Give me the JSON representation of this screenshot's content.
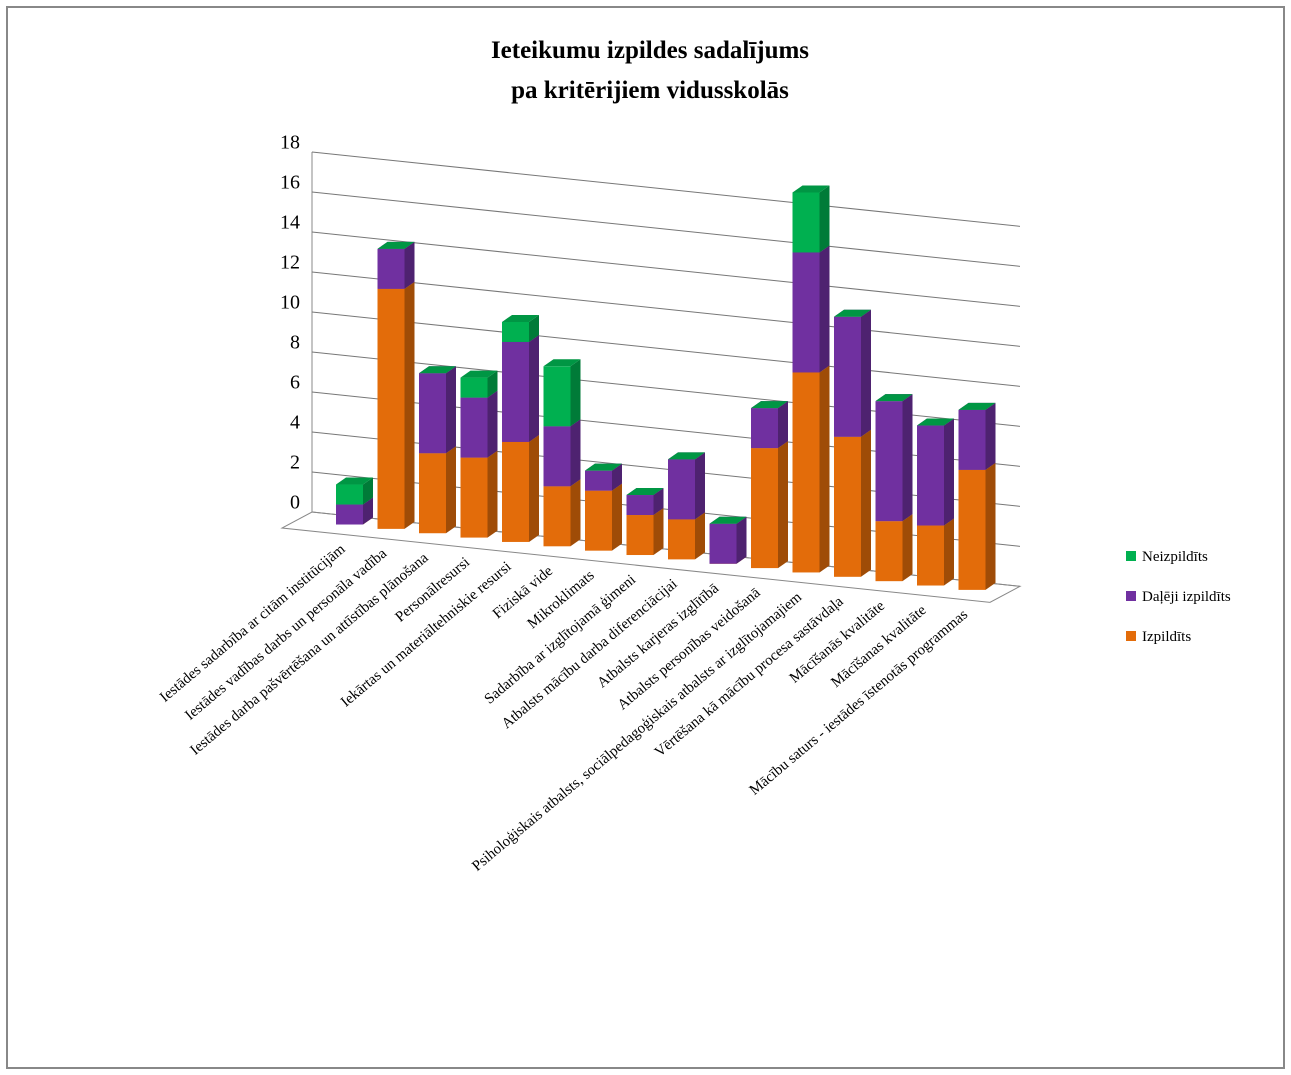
{
  "chart_data": {
    "type": "bar3d_stacked",
    "title": [
      "Ieteikumu izpildes sadalījums",
      "pa kritērijiem vidusskolās"
    ],
    "categories": [
      "Iestādes sadarbība ar citām institūcijām",
      "Iestādes vadības darbs un personāla vadība",
      "Iestādes darba pašvērtēšana un attīstības plānošana",
      "Personālresursi",
      "Iekārtas un materiāltehniskie resursi",
      "Fiziskā vide",
      "Mikroklimats",
      "Sadarbība ar izglītojamā ģimeni",
      "Atbalsts mācību darba diferenciācijai",
      "Atbalsts karjeras izglītībā",
      "Atbalsts personības veidošanā",
      "Psiholoģiskais atbalsts, sociālpedagoģiskais atbalsts ar izglītojamajiem",
      "Vērtēšana kā mācību procesa sastāvdaļa",
      "Mācīšanās kvalitāte",
      "Mācīšanas kvalitāte",
      "Mācību saturs - iestādes īstenotās programmas"
    ],
    "series": [
      {
        "name": "Izpildīts",
        "color": "#e36c0a",
        "values": [
          0,
          12,
          4,
          4,
          5,
          3,
          3,
          2,
          2,
          0,
          6,
          10,
          7,
          3,
          3,
          6
        ]
      },
      {
        "name": "Daļēji izpildīts",
        "color": "#7030a0",
        "values": [
          1,
          2,
          4,
          3,
          5,
          3,
          1,
          1,
          3,
          2,
          2,
          6,
          6,
          6,
          5,
          3
        ]
      },
      {
        "name": "Neizpildīts",
        "color": "#00b050",
        "values": [
          1,
          0,
          0,
          1,
          1,
          3,
          0,
          0,
          0,
          0,
          0,
          3,
          0,
          0,
          0,
          0
        ]
      }
    ],
    "ylim": [
      0,
      18
    ],
    "yticks": [
      0,
      2,
      4,
      6,
      8,
      10,
      12,
      14,
      16,
      18
    ],
    "grid": true,
    "legend": "right"
  }
}
